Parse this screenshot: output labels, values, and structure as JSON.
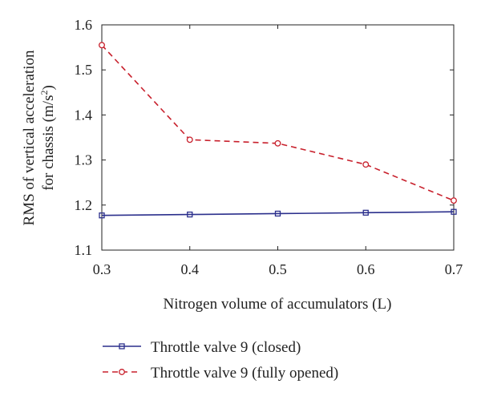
{
  "chart_data": {
    "type": "line",
    "xlabel": "Nitrogen volume of accumulators (L)",
    "ylabel_line1": "RMS of vertical acceleration",
    "ylabel_line2_prefix": "for chassis (m/s",
    "ylabel_line2_sup": "2",
    "ylabel_line2_suffix": ")",
    "x": [
      0.3,
      0.4,
      0.5,
      0.6,
      0.7
    ],
    "xlim": [
      0.3,
      0.7
    ],
    "ylim": [
      1.1,
      1.6
    ],
    "x_ticks": [
      "0.3",
      "0.4",
      "0.5",
      "0.6",
      "0.7"
    ],
    "y_ticks": [
      "1.1",
      "1.2",
      "1.3",
      "1.4",
      "1.5",
      "1.6"
    ],
    "legend_position": "bottom",
    "series": [
      {
        "name": "Throttle valve 9 (closed)",
        "values": [
          1.177,
          1.179,
          1.181,
          1.183,
          1.185
        ],
        "color": "#2b2f8c",
        "line_style": "solid",
        "marker": "square"
      },
      {
        "name": "Throttle valve 9 (fully opened)",
        "values": [
          1.555,
          1.345,
          1.337,
          1.29,
          1.21
        ],
        "color": "#c8202c",
        "line_style": "dashed",
        "marker": "circle"
      }
    ]
  }
}
